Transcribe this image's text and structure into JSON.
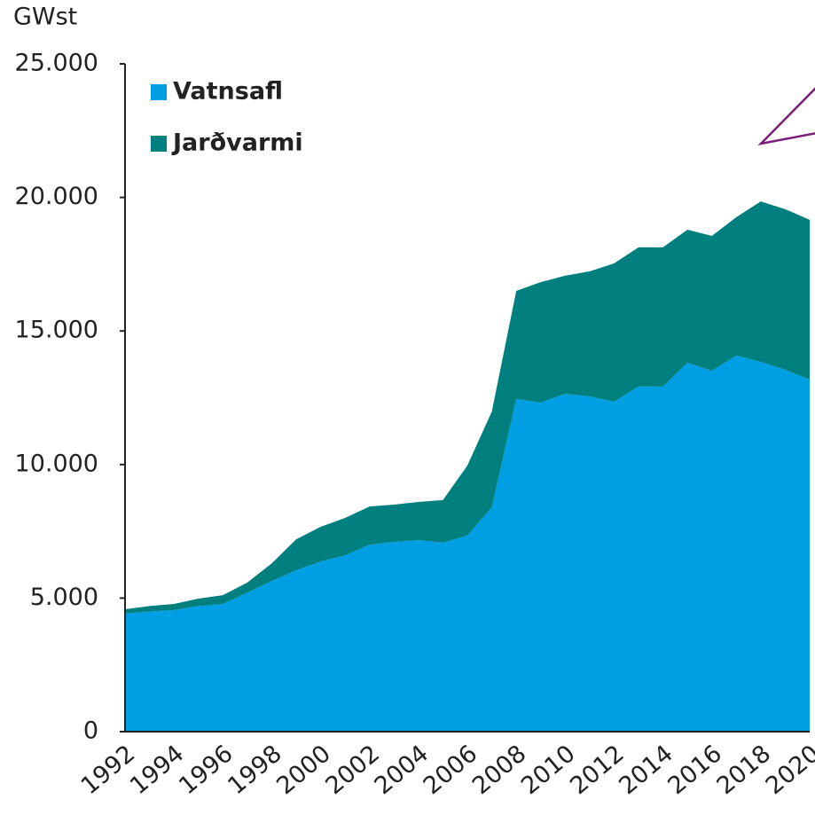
{
  "chart_data": {
    "type": "stacked_area",
    "y_label": "GWst",
    "categories": [
      "1992",
      null,
      "1994",
      null,
      "1996",
      null,
      "1998",
      null,
      "2000",
      null,
      "2002",
      null,
      "2004",
      null,
      "2006",
      null,
      "2008",
      null,
      "2010",
      null,
      "2012",
      null,
      "2014",
      null,
      "2016",
      null,
      "2018",
      null,
      "2020"
    ],
    "series": [
      {
        "name": "Vatnsafl",
        "color": "#009fe3",
        "values": [
          4420,
          4500,
          4550,
          4700,
          4780,
          5200,
          5640,
          6040,
          6370,
          6600,
          7000,
          7100,
          7170,
          7070,
          7340,
          8400,
          12450,
          12320,
          12650,
          12550,
          12350,
          12920,
          12920,
          13810,
          13510,
          14080,
          13840,
          13550,
          13180
        ]
      },
      {
        "name": "Jarðvarmi",
        "color": "#007f7f",
        "values": [
          160,
          200,
          230,
          280,
          330,
          380,
          660,
          1160,
          1300,
          1400,
          1430,
          1400,
          1430,
          1600,
          2620,
          3580,
          4050,
          4510,
          4420,
          4680,
          5180,
          5210,
          5210,
          4980,
          5050,
          5180,
          6010,
          6010,
          5980
        ]
      }
    ],
    "ylim": [
      0,
      25000
    ],
    "yticks": [
      0,
      {
        "value": 5000,
        "label": "5.000"
      },
      {
        "value": 10000,
        "label": "10.000"
      },
      {
        "value": 15000,
        "label": "15.000"
      },
      {
        "value": 20000,
        "label": "20.000"
      },
      {
        "value": 25000,
        "label": "25.000"
      }
    ],
    "legend": "upper left"
  }
}
